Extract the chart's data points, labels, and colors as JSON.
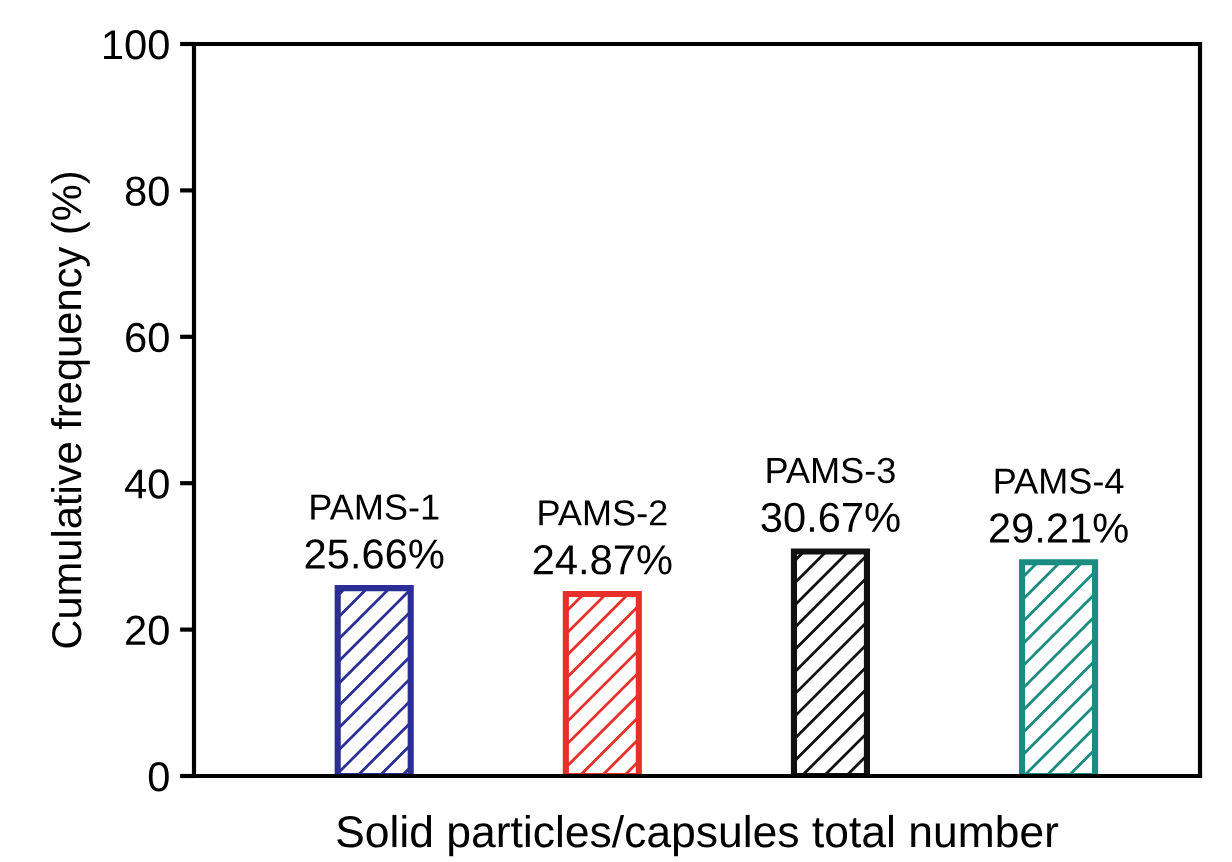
{
  "chart_data": {
    "type": "bar",
    "xlabel": "Solid particles/capsules total number",
    "ylabel": "Cumulative frequency (%)",
    "categories": [
      "PAMS-1",
      "PAMS-2",
      "PAMS-3",
      "PAMS-4"
    ],
    "values": [
      25.66,
      24.87,
      30.67,
      29.21
    ],
    "value_labels": [
      "25.66%",
      "24.87%",
      "30.67%",
      "29.21%"
    ],
    "colors": [
      "#2b2f95",
      "#e8302a",
      "#111111",
      "#1a8c80"
    ],
    "ylim": [
      0,
      100
    ],
    "yticks": [
      0,
      20,
      40,
      60,
      80,
      100
    ],
    "grid": false
  }
}
